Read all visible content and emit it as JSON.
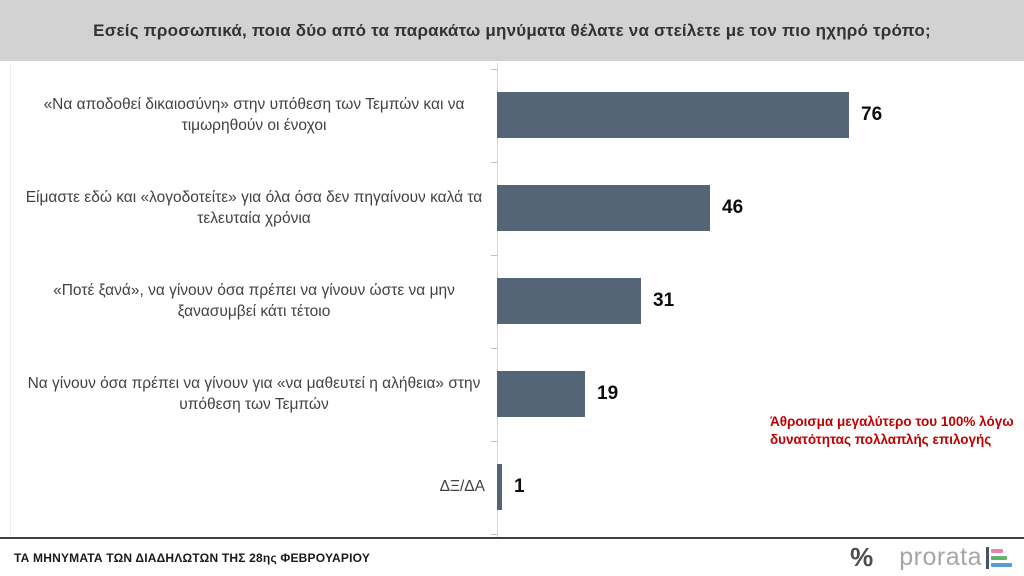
{
  "header": {
    "title": "Εσείς προσωπικά, ποια δύο από τα παρακάτω μηνύματα θέλατε να στείλετε με τον πιο ηχηρό τρόπο;",
    "bg": "#d2d2d2"
  },
  "chart_data": {
    "type": "bar",
    "orientation": "horizontal",
    "title": "Εσείς προσωπικά, ποια δύο από τα παρακάτω μηνύματα θέλατε να στείλετε με τον πιο ηχηρό τρόπο;",
    "categories": [
      "«Να αποδοθεί δικαιοσύνη» στην υπόθεση των Τεμπών και να τιμωρηθούν οι ένοχοι",
      "Είμαστε εδώ και «λογοδοτείτε» για όλα όσα δεν πηγαίνουν καλά τα τελευταία χρόνια",
      "«Ποτέ ξανά», να γίνουν όσα πρέπει να γίνουν ώστε να μην ξανασυμβεί κάτι τέτοιο",
      "Να γίνουν όσα πρέπει να γίνουν για «να μαθευτεί η αλήθεια» στην υπόθεση των Τεμπών",
      "ΔΞ/ΔΑ"
    ],
    "values": [
      76,
      46,
      31,
      19,
      1
    ],
    "xlim": [
      0,
      100
    ],
    "grid": false,
    "legend": "none",
    "bar_color": "#546577",
    "value_labels": true,
    "annotation": "Άθροισμα μεγαλύτερο του 100% λόγω δυνατότητας πολλαπλής επιλογής",
    "annotation_color": "#c00000"
  },
  "footer": {
    "caption": "ΤΑ ΜΗΝΥΜΑΤΑ ΤΩΝ ΔΙΑΔΗΛΩΤΩΝ ΤΗΣ 28ης ΦΕΒΡΟΥΑΡΙΟΥ",
    "logo": {
      "percent": "%",
      "brand": "prorata",
      "mark_axis_color": "#44546a",
      "mark_bar_colors": [
        "#e884ab",
        "#62b36a",
        "#5b9bd5"
      ],
      "mark_bar_widths": [
        12,
        16,
        21
      ]
    }
  }
}
